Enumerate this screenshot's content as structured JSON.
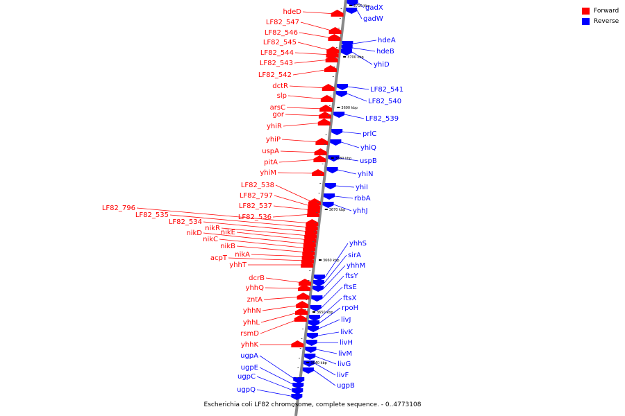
{
  "legend": {
    "forward": {
      "label": "Forward",
      "color": "#ff0000"
    },
    "reverse": {
      "label": "Reverse",
      "color": "#0000ff"
    }
  },
  "caption": "Escherichia coli LF82 chromosome, complete sequence. - 0..4773108",
  "ticks": [
    "3710 kbp",
    "3700 kbp",
    "3690 kbp",
    "3680 kbp",
    "3670 kbp",
    "3660 kbp",
    "3650 kbp",
    "3640 kbp"
  ],
  "forward_genes": [
    "hdeD",
    "LF82_547",
    "LF82_546",
    "LF82_545",
    "LF82_544",
    "LF82_543",
    "LF82_542",
    "dctR",
    "slp",
    "arsC",
    "gor",
    "yhiR",
    "yhiP",
    "uspA",
    "pitA",
    "yhiM",
    "LF82_538",
    "LF82_797",
    "LF82_537",
    "LF82_536",
    "LF82_796",
    "LF82_535",
    "LF82_534",
    "nikR",
    "nikE",
    "nikD",
    "nikC",
    "nikB",
    "nikA",
    "acpT",
    "yhhT",
    "dcrB",
    "yhhQ",
    "zntA",
    "yhhN",
    "yhhL",
    "rsmD",
    "yhhK"
  ],
  "reverse_genes": [
    "gadX",
    "gadW",
    "hdeA",
    "hdeB",
    "yhiD",
    "LF82_541",
    "LF82_540",
    "LF82_539",
    "prlC",
    "yhiQ",
    "uspB",
    "yhiN",
    "yhiI",
    "rbbA",
    "yhhJ",
    "yhhS",
    "sirA",
    "yhhM",
    "ftsY",
    "ftsE",
    "ftsX",
    "rpoH",
    "livJ",
    "livK",
    "livH",
    "livM",
    "livG",
    "livF",
    "ugpB",
    "ugpA",
    "ugpE",
    "ugpC",
    "ugpQ"
  ]
}
